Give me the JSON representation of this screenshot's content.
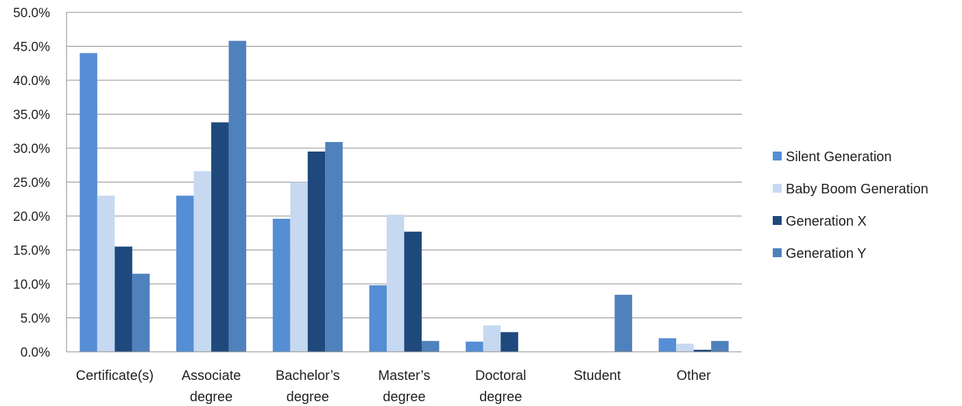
{
  "chart_data": {
    "type": "bar",
    "title": "",
    "xlabel": "",
    "ylabel": "",
    "ylim": [
      0,
      50
    ],
    "y_tick_step": 5,
    "y_tick_format": "percent-1-decimal",
    "y_ticks": [
      "0.0%",
      "5.0%",
      "10.0%",
      "15.0%",
      "20.0%",
      "25.0%",
      "30.0%",
      "35.0%",
      "40.0%",
      "45.0%",
      "50.0%"
    ],
    "grid": true,
    "legend_position": "right",
    "categories": [
      [
        "Certificate(s)"
      ],
      [
        "Associate",
        "degree"
      ],
      [
        "Bachelor’s",
        "degree"
      ],
      [
        "Master’s",
        "degree"
      ],
      [
        "Doctoral",
        "degree"
      ],
      [
        "Student"
      ],
      [
        "Other"
      ]
    ],
    "series": [
      {
        "name": "Silent Generation",
        "color": "#558ED5",
        "values": [
          44.0,
          23.0,
          19.6,
          9.8,
          1.5,
          0.0,
          2.0
        ]
      },
      {
        "name": "Baby Boom Generation",
        "color": "#C6D9F1",
        "values": [
          23.0,
          26.6,
          25.0,
          20.2,
          3.9,
          0.0,
          1.2
        ]
      },
      {
        "name": "Generation X",
        "color": "#1F497D",
        "values": [
          15.5,
          33.8,
          29.5,
          17.7,
          2.9,
          0.0,
          0.3
        ]
      },
      {
        "name": "Generation Y",
        "color": "#4F81BD",
        "values": [
          11.5,
          45.8,
          30.9,
          1.6,
          0.0,
          8.4,
          1.6
        ]
      }
    ]
  }
}
